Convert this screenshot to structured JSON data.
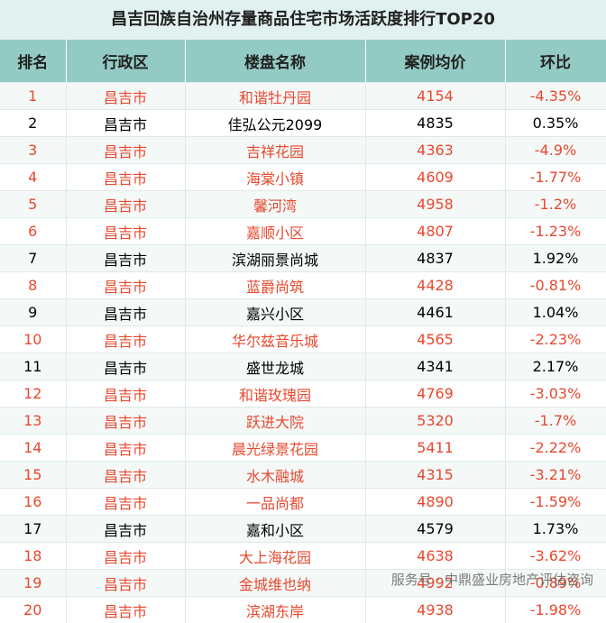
{
  "header": {
    "title": "昌吉回族自治州存量商品住宅市场活跃度排行TOP20"
  },
  "table": {
    "columns": [
      "排名",
      "行政区",
      "楼盘名称",
      "案例均价",
      "环比"
    ],
    "rows": [
      [
        1,
        "昌吉市",
        "和谐牡丹园",
        4154,
        "-4.35%"
      ],
      [
        2,
        "昌吉市",
        "佳弘公元2099",
        4835,
        "0.35%"
      ],
      [
        3,
        "昌吉市",
        "吉祥花园",
        4363,
        "-4.9%"
      ],
      [
        4,
        "昌吉市",
        "海棠小镇",
        4609,
        "-1.77%"
      ],
      [
        5,
        "昌吉市",
        "馨河湾",
        4958,
        "-1.2%"
      ],
      [
        6,
        "昌吉市",
        "嘉顺小区",
        4807,
        "-1.23%"
      ],
      [
        7,
        "昌吉市",
        "滨湖丽景尚城",
        4837,
        "1.92%"
      ],
      [
        8,
        "昌吉市",
        "蓝爵尚筑",
        4428,
        "-0.81%"
      ],
      [
        9,
        "昌吉市",
        "嘉兴小区",
        4461,
        "1.04%"
      ],
      [
        10,
        "昌吉市",
        "华尔兹音乐城",
        4565,
        "-2.23%"
      ],
      [
        11,
        "昌吉市",
        "盛世龙城",
        4341,
        "2.17%"
      ],
      [
        12,
        "昌吉市",
        "和谐玫瑰园",
        4769,
        "-3.03%"
      ],
      [
        13,
        "昌吉市",
        "跃进大院",
        5320,
        "-1.7%"
      ],
      [
        14,
        "昌吉市",
        "晨光绿景花园",
        5411,
        "-2.22%"
      ],
      [
        15,
        "昌吉市",
        "水木融城",
        4315,
        "-3.21%"
      ],
      [
        16,
        "昌吉市",
        "一品尚都",
        4890,
        "-1.59%"
      ],
      [
        17,
        "昌吉市",
        "嘉和小区",
        4579,
        "1.73%"
      ],
      [
        18,
        "昌吉市",
        "大上海花园",
        4638,
        "-3.62%"
      ],
      [
        19,
        "昌吉市",
        "金城维也纳",
        4992,
        "-0.89%"
      ],
      [
        20,
        "昌吉市",
        "滨湖东岸",
        4938,
        "-1.98%"
      ]
    ]
  },
  "watermark": "服务号 · 中鼎盛业房地产评估咨询"
}
